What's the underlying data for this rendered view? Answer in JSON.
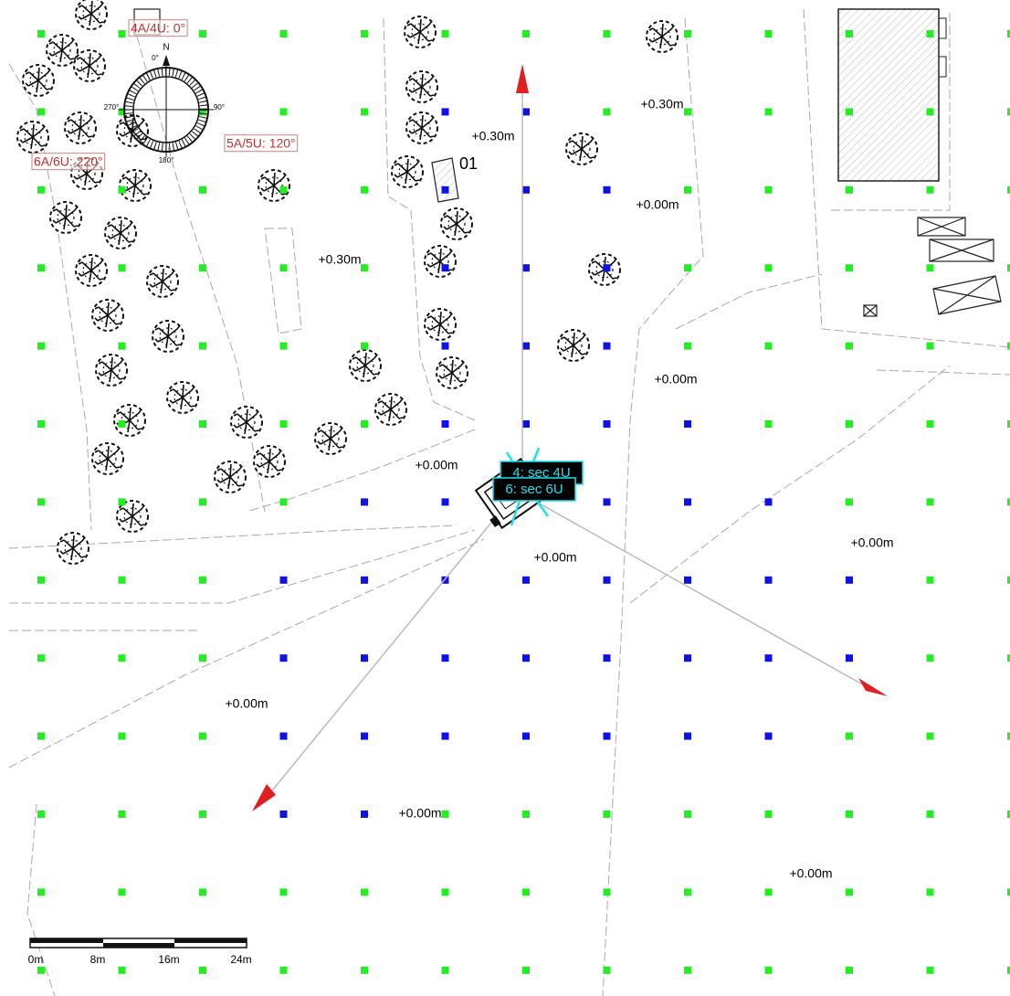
{
  "angle_labels": [
    "4A/4U: 0°",
    "5A/5U: 120°",
    "6A/6U: 220°"
  ],
  "compass": [
    "N",
    "0°",
    "90°",
    "180°",
    "270°"
  ],
  "point_label": "01",
  "elevations": [
    "+0.30m",
    "+0.30m",
    "+0.30m",
    "+0.00m",
    "+0.00m",
    "+0.00m",
    "+0.00m",
    "+0.00m",
    "+0.00m",
    "+0.00m",
    "+0.00m"
  ],
  "sectors": [
    "4: sec 4U",
    "6: sec 6U"
  ],
  "scale": [
    "0m",
    "8m",
    "16m",
    "24m"
  ]
}
